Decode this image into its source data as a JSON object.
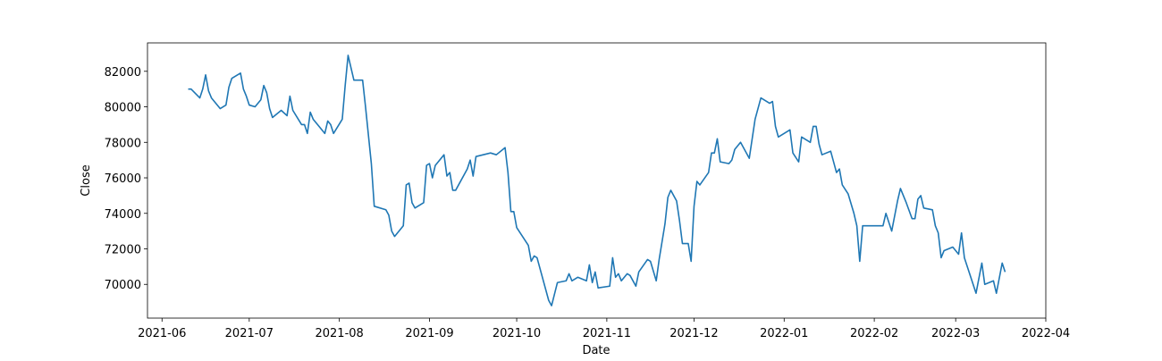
{
  "chart_data": {
    "type": "line",
    "x_label": "Date",
    "y_label": "Close",
    "color": "#1f77b4",
    "x": [
      18788,
      18789,
      18792,
      18793,
      18794,
      18795,
      18796,
      18799,
      18801,
      18802,
      18803,
      18806,
      18807,
      18808,
      18809,
      18811,
      18813,
      18814,
      18815,
      18816,
      18817,
      18820,
      18822,
      18823,
      18824,
      18827,
      18828,
      18829,
      18830,
      18831,
      18833,
      18835,
      18836,
      18837,
      18838,
      18841,
      18842,
      18843,
      18845,
      18848,
      18849,
      18851,
      18852,
      18856,
      18857,
      18858,
      18859,
      18862,
      18863,
      18864,
      18865,
      18866,
      18869,
      18870,
      18871,
      18872,
      18873,
      18876,
      18877,
      18878,
      18879,
      18880,
      18884,
      18885,
      18886,
      18887,
      18892,
      18894,
      18897,
      18898,
      18899,
      18900,
      18901,
      18905,
      18906,
      18907,
      18908,
      18912,
      18913,
      18915,
      18918,
      18919,
      18920,
      18922,
      18925,
      18926,
      18927,
      18928,
      18929,
      18933,
      18934,
      18935,
      18936,
      18937,
      18939,
      18940,
      18942,
      18943,
      18946,
      18947,
      18949,
      18950,
      18952,
      18953,
      18954,
      18956,
      18957,
      18958,
      18960,
      18961,
      18962,
      18963,
      18964,
      18967,
      18968,
      18969,
      18970,
      18971,
      18974,
      18975,
      18976,
      18978,
      18981,
      18983,
      18985,
      18988,
      18989,
      18990,
      18991,
      18995,
      18996,
      18998,
      18999,
      19002,
      19003,
      19004,
      19005,
      19006,
      19009,
      19011,
      19012,
      19013,
      19015,
      19017,
      19018,
      19019,
      19020,
      19027,
      19028,
      19030,
      19032,
      19033,
      19035,
      19037,
      19038,
      19039,
      19040,
      19041,
      19044,
      19045,
      19046,
      19047,
      19048,
      19051,
      19053,
      19054,
      19055,
      19059,
      19061,
      19062,
      19065,
      19066,
      19068,
      19069
    ],
    "values": [
      81000,
      81000,
      80500,
      81000,
      81800,
      80900,
      80500,
      79900,
      80100,
      81100,
      81600,
      81900,
      81000,
      80600,
      80100,
      80000,
      80400,
      81200,
      80800,
      79900,
      79400,
      79800,
      79500,
      80600,
      79800,
      79000,
      79000,
      78500,
      79700,
      79300,
      78900,
      78500,
      79200,
      79000,
      78500,
      79300,
      81200,
      82900,
      81500,
      81500,
      80000,
      76800,
      74400,
      74200,
      73900,
      73000,
      72700,
      73300,
      75600,
      75700,
      74600,
      74300,
      74600,
      76700,
      76800,
      76000,
      76700,
      77300,
      76100,
      76300,
      75300,
      75300,
      76500,
      77000,
      76100,
      77200,
      77400,
      77300,
      77700,
      76300,
      74100,
      74100,
      73200,
      72200,
      71300,
      71600,
      71500,
      69100,
      68800,
      70100,
      70200,
      70600,
      70200,
      70400,
      70200,
      71100,
      70100,
      70700,
      69800,
      69900,
      71500,
      70400,
      70600,
      70200,
      70600,
      70500,
      69900,
      70700,
      71400,
      71300,
      70200,
      71400,
      73400,
      74900,
      75300,
      74700,
      73600,
      72300,
      72300,
      71300,
      74400,
      75800,
      75600,
      76300,
      77400,
      77400,
      78200,
      76900,
      76800,
      77000,
      77600,
      78000,
      77100,
      79300,
      80500,
      80200,
      80300,
      78900,
      78300,
      78700,
      77400,
      76900,
      78300,
      78000,
      78900,
      78900,
      77900,
      77300,
      77500,
      76300,
      76500,
      75600,
      75100,
      74000,
      73300,
      71300,
      73300,
      73300,
      74000,
      73000,
      74700,
      75400,
      74600,
      73700,
      73700,
      74800,
      75000,
      74300,
      74200,
      73300,
      72900,
      71500,
      71900,
      72100,
      71700,
      72900,
      71500,
      69500,
      71200,
      70000,
      70200,
      69500,
      71200,
      70700
    ],
    "xlim": [
      18774,
      19083
    ],
    "xticks": [
      {
        "value": 18779,
        "label": "2021-06"
      },
      {
        "value": 18809,
        "label": "2021-07"
      },
      {
        "value": 18840,
        "label": "2021-08"
      },
      {
        "value": 18871,
        "label": "2021-09"
      },
      {
        "value": 18901,
        "label": "2021-10"
      },
      {
        "value": 18932,
        "label": "2021-11"
      },
      {
        "value": 18962,
        "label": "2021-12"
      },
      {
        "value": 18993,
        "label": "2022-01"
      },
      {
        "value": 19024,
        "label": "2022-02"
      },
      {
        "value": 19052,
        "label": "2022-03"
      },
      {
        "value": 19083,
        "label": "2022-04"
      }
    ],
    "ylim": [
      68100,
      83600
    ],
    "yticks": [
      70000,
      72000,
      74000,
      76000,
      78000,
      80000,
      82000
    ],
    "grid": false
  }
}
